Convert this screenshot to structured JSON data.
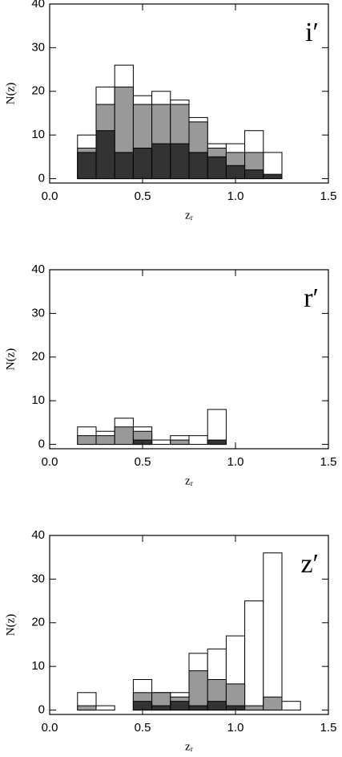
{
  "chart_data": [
    {
      "type": "histogram",
      "title": "i′",
      "xlabel": "zᵣ",
      "ylabel": "N(z)",
      "bins": [
        0.15,
        0.25,
        0.35,
        0.45,
        0.55,
        0.65,
        0.75,
        0.85,
        0.95,
        1.05,
        1.15,
        1.25
      ],
      "series": [
        {
          "color": "#ffffff",
          "values": [
            10,
            21,
            26,
            19,
            20,
            18,
            14,
            8,
            8,
            11,
            6
          ]
        },
        {
          "color": "#999999",
          "values": [
            7,
            17,
            21,
            17,
            17,
            17,
            13,
            7,
            6,
            6,
            0
          ]
        },
        {
          "color": "#333333",
          "values": [
            6,
            11,
            6,
            7,
            8,
            8,
            6,
            5,
            3,
            2,
            1
          ]
        }
      ],
      "xlim": [
        0,
        1.5
      ],
      "ylim": [
        -1,
        40
      ],
      "xticks": [
        {
          "value": 0,
          "label": "0.0"
        },
        {
          "value": 0.5,
          "label": "0.5"
        },
        {
          "value": 1,
          "label": "1.0"
        },
        {
          "value": 1.5,
          "label": "1.5"
        }
      ],
      "yticks": [
        0,
        10,
        20,
        30,
        40
      ]
    },
    {
      "type": "histogram",
      "title": "r′",
      "xlabel": "zᵣ",
      "ylabel": "N(z)",
      "bins": [
        0.15,
        0.25,
        0.35,
        0.45,
        0.55,
        0.65,
        0.75,
        0.85,
        0.95
      ],
      "series": [
        {
          "color": "#ffffff",
          "values": [
            4,
            3,
            6,
            4,
            1,
            2,
            2,
            8
          ]
        },
        {
          "color": "#999999",
          "values": [
            2,
            2,
            4,
            3,
            0,
            1,
            0,
            0
          ]
        },
        {
          "color": "#333333",
          "values": [
            0,
            0,
            0,
            1,
            0,
            0,
            0,
            1
          ]
        }
      ],
      "xlim": [
        0,
        1.5
      ],
      "ylim": [
        -1,
        40
      ],
      "xticks": [
        {
          "value": 0,
          "label": "0.0"
        },
        {
          "value": 0.5,
          "label": "0.5"
        },
        {
          "value": 1,
          "label": "1.0"
        },
        {
          "value": 1.5,
          "label": "1.5"
        }
      ],
      "yticks": [
        0,
        10,
        20,
        30,
        40
      ]
    },
    {
      "type": "histogram",
      "title": "z′",
      "xlabel": "zᵣ",
      "ylabel": "N(z)",
      "bins": [
        0.15,
        0.25,
        0.35,
        0.45,
        0.55,
        0.65,
        0.75,
        0.85,
        0.95,
        1.05,
        1.15,
        1.25,
        1.35
      ],
      "series": [
        {
          "color": "#ffffff",
          "values": [
            4,
            1,
            0,
            7,
            4,
            4,
            13,
            14,
            17,
            25,
            36,
            2
          ]
        },
        {
          "color": "#999999",
          "values": [
            1,
            0,
            0,
            4,
            4,
            3,
            9,
            7,
            6,
            1,
            3,
            0
          ]
        },
        {
          "color": "#333333",
          "values": [
            0,
            0,
            0,
            2,
            1,
            2,
            1,
            2,
            1,
            0,
            0,
            0
          ]
        }
      ],
      "xlim": [
        0,
        1.5
      ],
      "ylim": [
        -1,
        40
      ],
      "xticks": [
        {
          "value": 0,
          "label": "0.0"
        },
        {
          "value": 0.5,
          "label": "0.5"
        },
        {
          "value": 1,
          "label": "1.0"
        },
        {
          "value": 1.5,
          "label": "1.5"
        }
      ],
      "yticks": [
        0,
        10,
        20,
        30,
        40
      ]
    }
  ]
}
